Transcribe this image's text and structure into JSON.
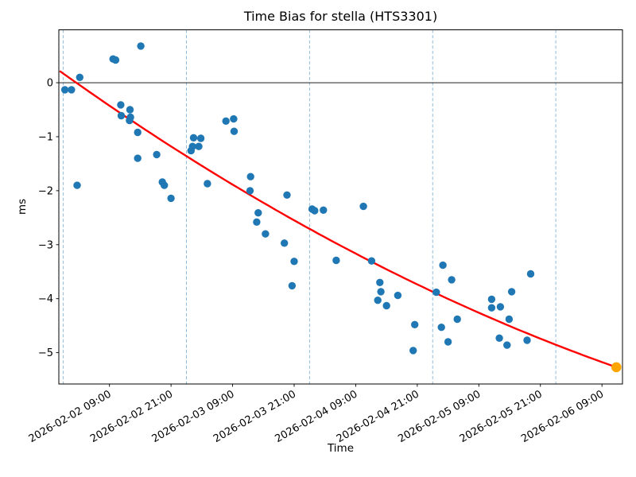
{
  "chart_data": {
    "type": "scatter",
    "title": "Time Bias for stella (HTS3301)",
    "xlabel": "Time",
    "ylabel": "ms",
    "t_unit": "hours since 2026-02-02 00:00",
    "xlim_hours": [
      -0.87,
      109.0
    ],
    "ylim": [
      -5.58,
      0.98
    ],
    "grid": false,
    "x_ticks": {
      "hours": [
        9,
        21,
        33,
        45,
        57,
        69,
        81,
        93,
        105
      ],
      "labels": [
        "2026-02-02 09:00",
        "2026-02-02 21:00",
        "2026-02-03 09:00",
        "2026-02-03 21:00",
        "2026-02-04 09:00",
        "2026-02-04 21:00",
        "2026-02-05 09:00",
        "2026-02-05 21:00",
        "2026-02-06 09:00"
      ],
      "rotation_deg": -30
    },
    "y_ticks": [
      0,
      -1,
      -2,
      -3,
      -4,
      -5
    ],
    "day_boundary_lines_hours": [
      0,
      24,
      48,
      72,
      96
    ],
    "zero_line": 0,
    "colors": {
      "scatter": "#1f77b4",
      "fit_line": "#ff0000",
      "latest_point": "#ffa500",
      "day_line": "#1f77b4",
      "axis": "#000000"
    },
    "series": [
      {
        "name": "bias-measurements",
        "kind": "scatter",
        "color": "#1f77b4",
        "points": [
          [
            0.3,
            -0.13
          ],
          [
            1.6,
            -0.13
          ],
          [
            3.2,
            0.1
          ],
          [
            2.7,
            -1.9
          ],
          [
            9.7,
            0.44
          ],
          [
            10.2,
            0.42
          ],
          [
            15.1,
            0.68
          ],
          [
            11.2,
            -0.41
          ],
          [
            11.3,
            -0.61
          ],
          [
            13.0,
            -0.5
          ],
          [
            13.1,
            -0.64
          ],
          [
            12.9,
            -0.7
          ],
          [
            14.5,
            -0.92
          ],
          [
            14.5,
            -1.4
          ],
          [
            18.2,
            -1.33
          ],
          [
            19.3,
            -1.84
          ],
          [
            19.7,
            -1.9
          ],
          [
            21.0,
            -2.14
          ],
          [
            25.4,
            -1.02
          ],
          [
            26.8,
            -1.03
          ],
          [
            25.2,
            -1.18
          ],
          [
            26.4,
            -1.18
          ],
          [
            24.9,
            -1.26
          ],
          [
            28.1,
            -1.87
          ],
          [
            31.7,
            -0.71
          ],
          [
            33.2,
            -0.67
          ],
          [
            33.3,
            -0.9
          ],
          [
            36.5,
            -1.74
          ],
          [
            36.4,
            -2.0
          ],
          [
            38.0,
            -2.41
          ],
          [
            37.7,
            -2.58
          ],
          [
            39.4,
            -2.8
          ],
          [
            43.1,
            -2.97
          ],
          [
            43.6,
            -2.08
          ],
          [
            45.0,
            -3.31
          ],
          [
            44.6,
            -3.76
          ],
          [
            48.5,
            -2.34
          ],
          [
            49.0,
            -2.37
          ],
          [
            50.7,
            -2.36
          ],
          [
            53.2,
            -3.29
          ],
          [
            58.5,
            -2.29
          ],
          [
            60.1,
            -3.3
          ],
          [
            61.7,
            -3.7
          ],
          [
            61.9,
            -3.87
          ],
          [
            61.3,
            -4.03
          ],
          [
            63.0,
            -4.13
          ],
          [
            65.2,
            -3.94
          ],
          [
            68.5,
            -4.48
          ],
          [
            68.2,
            -4.96
          ],
          [
            72.7,
            -3.88
          ],
          [
            74.0,
            -3.38
          ],
          [
            75.7,
            -3.65
          ],
          [
            73.7,
            -4.53
          ],
          [
            75.0,
            -4.8
          ],
          [
            76.8,
            -4.38
          ],
          [
            83.5,
            -4.01
          ],
          [
            83.5,
            -4.17
          ],
          [
            85.2,
            -4.15
          ],
          [
            86.9,
            -4.38
          ],
          [
            85.0,
            -4.73
          ],
          [
            86.5,
            -4.86
          ],
          [
            87.4,
            -3.87
          ],
          [
            90.4,
            -4.77
          ],
          [
            91.1,
            -3.54
          ]
        ]
      },
      {
        "name": "latest-measurement",
        "kind": "scatter",
        "color": "#ffa500",
        "points": [
          [
            107.8,
            -5.27
          ]
        ]
      },
      {
        "name": "quadratic-fit",
        "kind": "line",
        "color": "#ff0000",
        "coeffs": {
          "a": 0.17,
          "b": -0.06754,
          "c": 0.0001585
        },
        "t_range": [
          -0.7,
          107.8
        ]
      }
    ]
  }
}
